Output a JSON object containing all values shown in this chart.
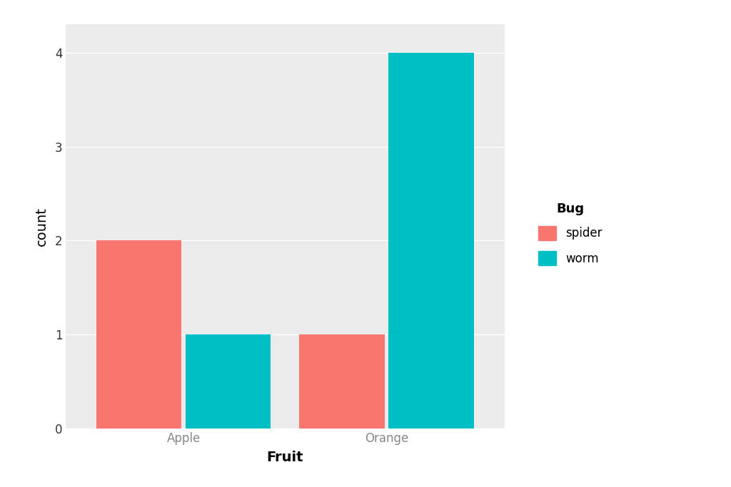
{
  "fruits": [
    "Apple",
    "Orange"
  ],
  "bugs": [
    "spider",
    "worm"
  ],
  "values": {
    "Apple": {
      "spider": 2,
      "worm": 1
    },
    "Orange": {
      "spider": 1,
      "worm": 4
    }
  },
  "colors": {
    "spider": "#F8766D",
    "worm": "#00BFC4"
  },
  "xlabel": "Fruit",
  "ylabel": "count",
  "legend_title": "Bug",
  "ylim": [
    0,
    4.3
  ],
  "yticks": [
    0,
    1,
    2,
    3,
    4
  ],
  "background_color": "#EBEBEB",
  "panel_background": "#EBEBEB",
  "grid_color": "#FFFFFF",
  "bar_width": 0.42,
  "axis_label_fontsize": 14,
  "tick_fontsize": 12,
  "legend_fontsize": 12,
  "legend_title_fontsize": 13,
  "x_tick_color": "#888888",
  "y_tick_color": "#333333"
}
